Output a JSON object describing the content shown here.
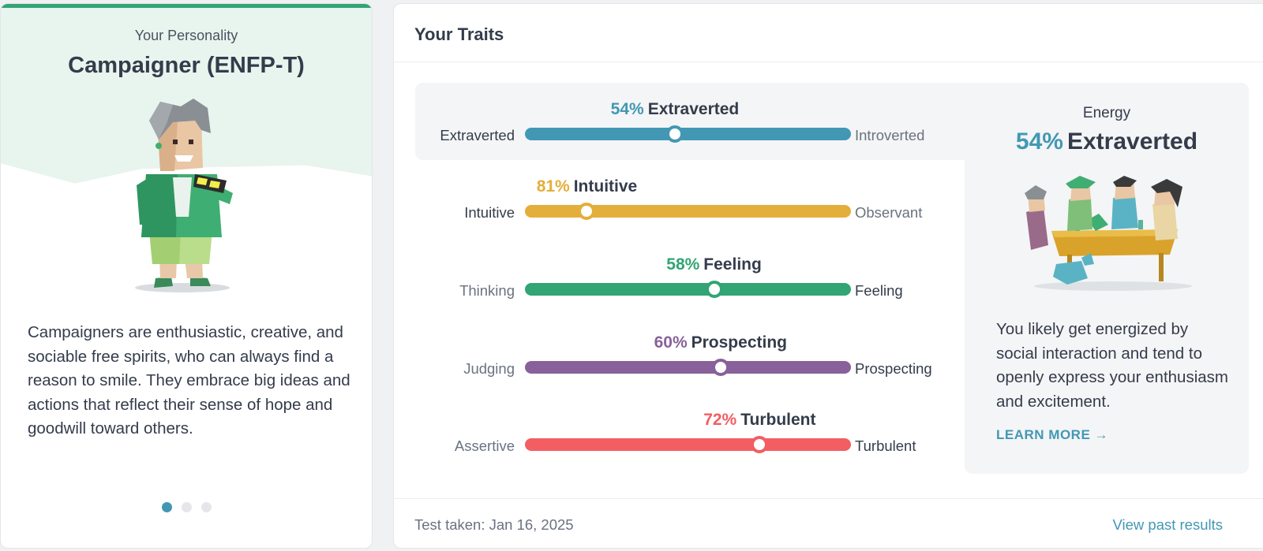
{
  "profile": {
    "subtitle": "Your Personality",
    "title": "Campaigner (ENFP-T)",
    "description": "Campaigners are enthusiastic, creative, and sociable free spirits, who can always find a reason to smile. They embrace big ideas and actions that reflect their sense of hope and goodwill toward others.",
    "carousel_pages": 3,
    "carousel_active": 1,
    "accent": "#33a474"
  },
  "traits_card": {
    "title": "Your Traits",
    "traits": [
      {
        "percent": "54%",
        "name": "Extraverted",
        "left": "Extraverted",
        "right": "Introverted",
        "position": 0.46,
        "selected_side": "left",
        "color": "#4298b4"
      },
      {
        "percent": "81%",
        "name": "Intuitive",
        "left": "Intuitive",
        "right": "Observant",
        "position": 0.19,
        "selected_side": "left",
        "color": "#e4ae3a"
      },
      {
        "percent": "58%",
        "name": "Feeling",
        "left": "Thinking",
        "right": "Feeling",
        "position": 0.58,
        "selected_side": "right",
        "color": "#33a474"
      },
      {
        "percent": "60%",
        "name": "Prospecting",
        "left": "Judging",
        "right": "Prospecting",
        "position": 0.6,
        "selected_side": "right",
        "color": "#88619a"
      },
      {
        "percent": "72%",
        "name": "Turbulent",
        "left": "Assertive",
        "right": "Turbulent",
        "position": 0.72,
        "selected_side": "right",
        "color": "#f25e62"
      }
    ],
    "energy": {
      "label": "Energy",
      "percent": "54%",
      "trait": "Extraverted",
      "text": "You likely get energized by social interaction and tend to openly express your enthusiasm and excitement.",
      "learn_more": "LEARN MORE"
    },
    "footer": {
      "test_taken": "Test taken: Jan 16, 2025",
      "view_past": "View past results"
    }
  }
}
